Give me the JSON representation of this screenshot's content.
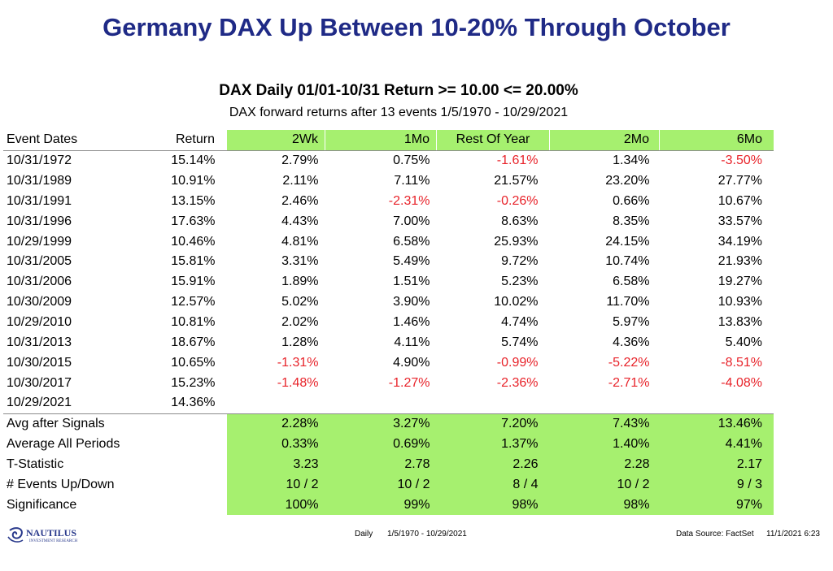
{
  "title": "Germany DAX Up Between 10-20% Through October",
  "subtitle": "DAX Daily 01/01-10/31 Return >= 10.00 <= 20.00%",
  "subtitle2": "DAX forward returns after 13 events 1/5/1970 - 10/29/2021",
  "headers": [
    "Event Dates",
    "Return",
    "2Wk",
    "1Mo",
    "Rest Of Year",
    "2Mo",
    "6Mo"
  ],
  "events": [
    {
      "date": "10/31/1972",
      "ret": "15.14%",
      "w2": "2.79%",
      "m1": "0.75%",
      "roy": "-1.61%",
      "m2": "1.34%",
      "m6": "-3.50%"
    },
    {
      "date": "10/31/1989",
      "ret": "10.91%",
      "w2": "2.11%",
      "m1": "7.11%",
      "roy": "21.57%",
      "m2": "23.20%",
      "m6": "27.77%"
    },
    {
      "date": "10/31/1991",
      "ret": "13.15%",
      "w2": "2.46%",
      "m1": "-2.31%",
      "roy": "-0.26%",
      "m2": "0.66%",
      "m6": "10.67%"
    },
    {
      "date": "10/31/1996",
      "ret": "17.63%",
      "w2": "4.43%",
      "m1": "7.00%",
      "roy": "8.63%",
      "m2": "8.35%",
      "m6": "33.57%"
    },
    {
      "date": "10/29/1999",
      "ret": "10.46%",
      "w2": "4.81%",
      "m1": "6.58%",
      "roy": "25.93%",
      "m2": "24.15%",
      "m6": "34.19%"
    },
    {
      "date": "10/31/2005",
      "ret": "15.81%",
      "w2": "3.31%",
      "m1": "5.49%",
      "roy": "9.72%",
      "m2": "10.74%",
      "m6": "21.93%"
    },
    {
      "date": "10/31/2006",
      "ret": "15.91%",
      "w2": "1.89%",
      "m1": "1.51%",
      "roy": "5.23%",
      "m2": "6.58%",
      "m6": "19.27%"
    },
    {
      "date": "10/30/2009",
      "ret": "12.57%",
      "w2": "5.02%",
      "m1": "3.90%",
      "roy": "10.02%",
      "m2": "11.70%",
      "m6": "10.93%"
    },
    {
      "date": "10/29/2010",
      "ret": "10.81%",
      "w2": "2.02%",
      "m1": "1.46%",
      "roy": "4.74%",
      "m2": "5.97%",
      "m6": "13.83%"
    },
    {
      "date": "10/31/2013",
      "ret": "18.67%",
      "w2": "1.28%",
      "m1": "4.11%",
      "roy": "5.74%",
      "m2": "4.36%",
      "m6": "5.40%"
    },
    {
      "date": "10/30/2015",
      "ret": "10.65%",
      "w2": "-1.31%",
      "m1": "4.90%",
      "roy": "-0.99%",
      "m2": "-5.22%",
      "m6": "-8.51%"
    },
    {
      "date": "10/30/2017",
      "ret": "15.23%",
      "w2": "-1.48%",
      "m1": "-1.27%",
      "roy": "-2.36%",
      "m2": "-2.71%",
      "m6": "-4.08%"
    },
    {
      "date": "10/29/2021",
      "ret": "14.36%",
      "w2": "",
      "m1": "",
      "roy": "",
      "m2": "",
      "m6": ""
    }
  ],
  "summary": [
    {
      "label": "Avg after Signals",
      "w2": "2.28%",
      "m1": "3.27%",
      "roy": "7.20%",
      "m2": "7.43%",
      "m6": "13.46%"
    },
    {
      "label": "Average All Periods",
      "w2": "0.33%",
      "m1": "0.69%",
      "roy": "1.37%",
      "m2": "1.40%",
      "m6": "4.41%"
    },
    {
      "label": "T-Statistic",
      "w2": "3.23",
      "m1": "2.78",
      "roy": "2.26",
      "m2": "2.28",
      "m6": "2.17"
    },
    {
      "label": "# Events Up/Down",
      "w2": "10 / 2",
      "m1": "10 / 2",
      "roy": "8 / 4",
      "m2": "10 / 2",
      "m6": "9 / 3"
    },
    {
      "label": "Significance",
      "w2": "100%",
      "m1": "99%",
      "roy": "98%",
      "m2": "98%",
      "m6": "97%"
    }
  ],
  "footer": {
    "logo_text": "NAUTILUS",
    "logo_subtext": "INVESTMENT RESEARCH",
    "daily": "Daily",
    "range": "1/5/1970 - 10/29/2021",
    "source": "Data Source: FactSet",
    "stamp": "11/1/2021 6:23"
  },
  "colors": {
    "title": "#1f2a86",
    "highlight": "#a6f06f",
    "negative": "#e8232a"
  }
}
